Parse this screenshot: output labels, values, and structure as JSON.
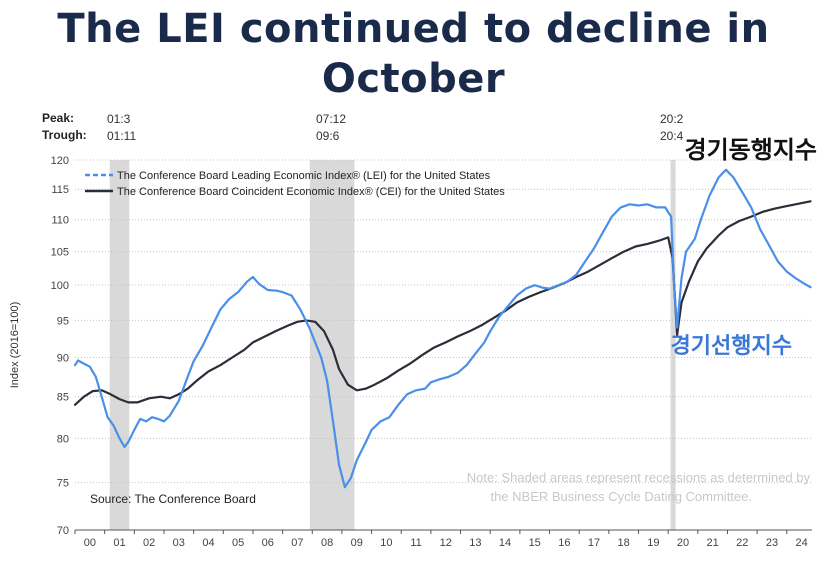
{
  "title_line1": "The LEI continued to decline in",
  "title_line2": "October",
  "peak_label": "Peak:",
  "trough_label": "Trough:",
  "cycles": [
    {
      "peak": "01:3",
      "trough": "01:11"
    },
    {
      "peak": "07:12",
      "trough": "09:6"
    },
    {
      "peak": "20:2",
      "trough": "20:4"
    }
  ],
  "annotations": {
    "coincident_kr": "경기동행지수",
    "leading_kr": "경기선행지수",
    "note_line1": "Note: Shaded areas represent recessions as determined by",
    "note_line2": "the NBER Business Cycle Dating Committee.",
    "source": "Source: The Conference Board"
  },
  "colors": {
    "lei": "#4a8fe8",
    "cei": "#2a2e38",
    "recession": "#d9d9d9",
    "title": "#1a2a4a"
  },
  "chart_data": {
    "type": "line",
    "ylabel": "Index (2016=100)",
    "ylim": [
      70,
      120
    ],
    "yscale": "log",
    "yticks": [
      70,
      75,
      80,
      85,
      90,
      95,
      100,
      105,
      110,
      115,
      120
    ],
    "xlim": [
      2000.0,
      2024.85
    ],
    "xticks": [
      "00",
      "01",
      "02",
      "03",
      "04",
      "05",
      "06",
      "07",
      "08",
      "09",
      "10",
      "11",
      "12",
      "13",
      "14",
      "15",
      "16",
      "17",
      "18",
      "19",
      "20",
      "21",
      "22",
      "23",
      "24"
    ],
    "recessions": [
      [
        2001.17,
        2001.83
      ],
      [
        2007.92,
        2009.42
      ],
      [
        2020.08,
        2020.25
      ]
    ],
    "legend": [
      "The Conference Board Leading Economic Index® (LEI) for the United States",
      "The Conference Board Coincident Economic Index® (CEI) for the United States"
    ],
    "series": [
      {
        "name": "LEI",
        "points": [
          [
            2000.0,
            89.0
          ],
          [
            2000.1,
            89.6
          ],
          [
            2000.3,
            89.2
          ],
          [
            2000.5,
            88.8
          ],
          [
            2000.7,
            87.5
          ],
          [
            2000.9,
            85.0
          ],
          [
            2001.1,
            82.5
          ],
          [
            2001.3,
            81.5
          ],
          [
            2001.5,
            80.0
          ],
          [
            2001.67,
            79.0
          ],
          [
            2001.8,
            79.6
          ],
          [
            2002.0,
            81.0
          ],
          [
            2002.2,
            82.3
          ],
          [
            2002.4,
            82.0
          ],
          [
            2002.6,
            82.5
          ],
          [
            2002.8,
            82.3
          ],
          [
            2003.0,
            82.0
          ],
          [
            2003.2,
            82.7
          ],
          [
            2003.5,
            84.5
          ],
          [
            2003.8,
            87.5
          ],
          [
            2004.0,
            89.5
          ],
          [
            2004.3,
            91.5
          ],
          [
            2004.6,
            94.0
          ],
          [
            2004.9,
            96.5
          ],
          [
            2005.2,
            98.0
          ],
          [
            2005.5,
            99.0
          ],
          [
            2005.8,
            100.5
          ],
          [
            2006.0,
            101.2
          ],
          [
            2006.2,
            100.2
          ],
          [
            2006.5,
            99.3
          ],
          [
            2006.8,
            99.2
          ],
          [
            2007.0,
            99.0
          ],
          [
            2007.3,
            98.5
          ],
          [
            2007.6,
            96.5
          ],
          [
            2007.9,
            94.0
          ],
          [
            2008.1,
            92.0
          ],
          [
            2008.3,
            90.0
          ],
          [
            2008.5,
            87.0
          ],
          [
            2008.7,
            82.0
          ],
          [
            2008.9,
            77.0
          ],
          [
            2009.1,
            74.5
          ],
          [
            2009.3,
            75.5
          ],
          [
            2009.5,
            77.5
          ],
          [
            2009.8,
            79.5
          ],
          [
            2010.0,
            81.0
          ],
          [
            2010.3,
            82.0
          ],
          [
            2010.6,
            82.5
          ],
          [
            2010.9,
            84.0
          ],
          [
            2011.2,
            85.3
          ],
          [
            2011.5,
            85.8
          ],
          [
            2011.8,
            86.0
          ],
          [
            2012.0,
            86.8
          ],
          [
            2012.3,
            87.2
          ],
          [
            2012.6,
            87.5
          ],
          [
            2012.9,
            88.0
          ],
          [
            2013.2,
            89.0
          ],
          [
            2013.5,
            90.5
          ],
          [
            2013.8,
            92.0
          ],
          [
            2014.0,
            93.5
          ],
          [
            2014.3,
            95.5
          ],
          [
            2014.6,
            97.0
          ],
          [
            2014.9,
            98.5
          ],
          [
            2015.2,
            99.5
          ],
          [
            2015.5,
            100.0
          ],
          [
            2015.8,
            99.6
          ],
          [
            2016.0,
            99.5
          ],
          [
            2016.3,
            100.0
          ],
          [
            2016.6,
            100.5
          ],
          [
            2016.9,
            101.5
          ],
          [
            2017.2,
            103.5
          ],
          [
            2017.5,
            105.5
          ],
          [
            2017.8,
            108.0
          ],
          [
            2018.1,
            110.5
          ],
          [
            2018.4,
            112.0
          ],
          [
            2018.7,
            112.5
          ],
          [
            2019.0,
            112.3
          ],
          [
            2019.3,
            112.5
          ],
          [
            2019.6,
            112.0
          ],
          [
            2019.9,
            112.0
          ],
          [
            2020.1,
            110.5
          ],
          [
            2020.2,
            100.0
          ],
          [
            2020.3,
            94.0
          ],
          [
            2020.45,
            101.0
          ],
          [
            2020.6,
            105.0
          ],
          [
            2020.9,
            107.0
          ],
          [
            2021.1,
            110.0
          ],
          [
            2021.4,
            114.0
          ],
          [
            2021.7,
            117.0
          ],
          [
            2021.95,
            118.3
          ],
          [
            2022.2,
            117.0
          ],
          [
            2022.5,
            114.5
          ],
          [
            2022.8,
            112.0
          ],
          [
            2023.1,
            108.5
          ],
          [
            2023.4,
            106.0
          ],
          [
            2023.7,
            103.5
          ],
          [
            2024.0,
            102.0
          ],
          [
            2024.3,
            101.0
          ],
          [
            2024.6,
            100.2
          ],
          [
            2024.8,
            99.7
          ]
        ]
      },
      {
        "name": "CEI",
        "points": [
          [
            2000.0,
            84.0
          ],
          [
            2000.3,
            85.0
          ],
          [
            2000.6,
            85.7
          ],
          [
            2000.9,
            85.8
          ],
          [
            2001.2,
            85.3
          ],
          [
            2001.5,
            84.7
          ],
          [
            2001.8,
            84.3
          ],
          [
            2002.1,
            84.3
          ],
          [
            2002.5,
            84.8
          ],
          [
            2002.9,
            85.0
          ],
          [
            2003.2,
            84.8
          ],
          [
            2003.5,
            85.3
          ],
          [
            2003.8,
            86.0
          ],
          [
            2004.1,
            87.0
          ],
          [
            2004.5,
            88.2
          ],
          [
            2004.9,
            89.0
          ],
          [
            2005.3,
            90.0
          ],
          [
            2005.7,
            91.0
          ],
          [
            2006.0,
            92.0
          ],
          [
            2006.4,
            92.8
          ],
          [
            2006.8,
            93.6
          ],
          [
            2007.2,
            94.3
          ],
          [
            2007.5,
            94.8
          ],
          [
            2007.8,
            95.0
          ],
          [
            2008.1,
            94.8
          ],
          [
            2008.4,
            93.5
          ],
          [
            2008.7,
            91.0
          ],
          [
            2008.9,
            88.5
          ],
          [
            2009.2,
            86.5
          ],
          [
            2009.5,
            85.8
          ],
          [
            2009.8,
            86.0
          ],
          [
            2010.1,
            86.5
          ],
          [
            2010.5,
            87.3
          ],
          [
            2010.9,
            88.3
          ],
          [
            2011.3,
            89.2
          ],
          [
            2011.7,
            90.3
          ],
          [
            2012.1,
            91.3
          ],
          [
            2012.5,
            92.0
          ],
          [
            2012.9,
            92.8
          ],
          [
            2013.3,
            93.5
          ],
          [
            2013.7,
            94.3
          ],
          [
            2014.1,
            95.3
          ],
          [
            2014.5,
            96.3
          ],
          [
            2014.9,
            97.5
          ],
          [
            2015.3,
            98.3
          ],
          [
            2015.7,
            99.0
          ],
          [
            2016.1,
            99.6
          ],
          [
            2016.5,
            100.3
          ],
          [
            2016.9,
            101.2
          ],
          [
            2017.3,
            102.0
          ],
          [
            2017.7,
            103.0
          ],
          [
            2018.1,
            104.0
          ],
          [
            2018.5,
            105.0
          ],
          [
            2018.9,
            105.8
          ],
          [
            2019.3,
            106.2
          ],
          [
            2019.7,
            106.7
          ],
          [
            2020.0,
            107.2
          ],
          [
            2020.15,
            104.0
          ],
          [
            2020.3,
            93.0
          ],
          [
            2020.45,
            97.5
          ],
          [
            2020.7,
            100.5
          ],
          [
            2021.0,
            103.5
          ],
          [
            2021.3,
            105.5
          ],
          [
            2021.7,
            107.5
          ],
          [
            2022.0,
            108.8
          ],
          [
            2022.4,
            109.8
          ],
          [
            2022.8,
            110.5
          ],
          [
            2023.2,
            111.3
          ],
          [
            2023.6,
            111.8
          ],
          [
            2024.0,
            112.2
          ],
          [
            2024.4,
            112.6
          ],
          [
            2024.8,
            113.0
          ]
        ]
      }
    ]
  }
}
